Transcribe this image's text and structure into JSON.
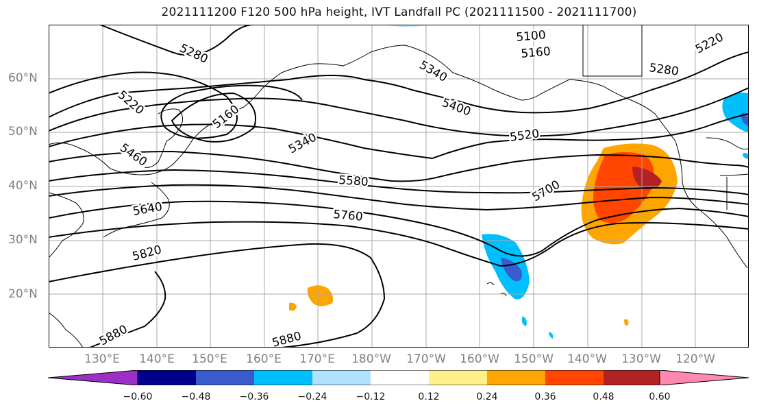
{
  "title": "2021111200 F120 500 hPa height, IVT Landfall PC (2021111500 - 2021111700)",
  "lat_labels": [
    "60°N",
    "50°N",
    "40°N",
    "30°N",
    "20°N"
  ],
  "lon_labels": [
    "130°E",
    "140°E",
    "150°E",
    "160°E",
    "170°E",
    "180°W",
    "170°W",
    "160°W",
    "150°W",
    "140°W",
    "130°W",
    "120°W"
  ],
  "contour_labels": [
    "5100",
    "5160",
    "5160",
    "5220",
    "5220",
    "5280",
    "5280",
    "5340",
    "5340",
    "5400",
    "5460",
    "5520",
    "5580",
    "5640",
    "5700",
    "5760",
    "5820",
    "5880",
    "5880"
  ],
  "colorbar": {
    "ticks": [
      "−0.60",
      "−0.48",
      "−0.36",
      "−0.24",
      "−0.12",
      "0.12",
      "0.24",
      "0.36",
      "0.48",
      "0.60"
    ],
    "colors": [
      "#9b30c8",
      "#00008b",
      "#3a5bcc",
      "#00bfff",
      "#b0e2ff",
      "#ffffff",
      "#fff08a",
      "#ffa500",
      "#ff4500",
      "#b22222",
      "#ff88b0"
    ]
  }
}
